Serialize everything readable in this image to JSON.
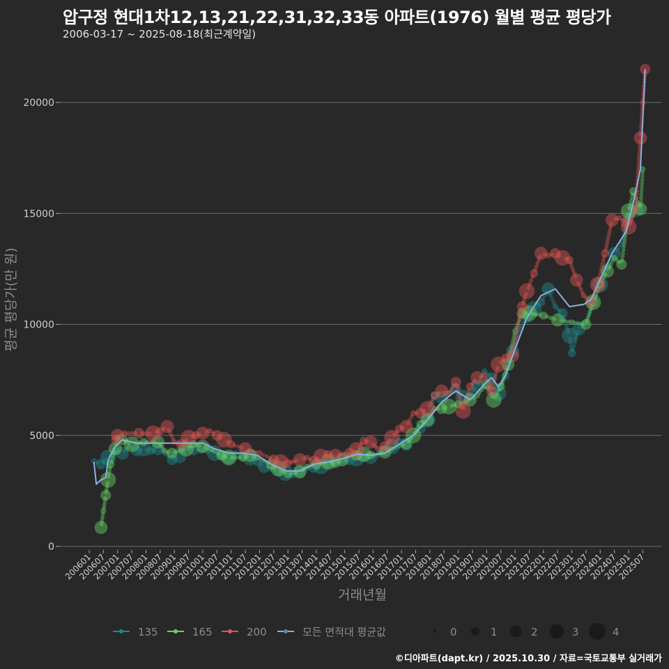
{
  "header": {
    "title": "압구정 현대1차12,13,21,22,31,32,33동 아파트(1976) 월별 평균 평당가",
    "subtitle": "2006-03-17 ~ 2025-08-18(최근계약일)"
  },
  "footer": {
    "credit": "©디아파트(dapt.kr) / 2025.10.30 / 자료=국토교통부 실거래가"
  },
  "colors": {
    "background": "#282828",
    "grid": "#6e6e6e",
    "s135": "#1f8a8a",
    "s165": "#66d466",
    "s200": "#e05555",
    "avg": "#8fb0e0"
  },
  "chart_data": {
    "type": "scatter",
    "title": "압구정 현대1차12,13,21,22,31,32,33동 아파트(1976) 월별 평균 평당가",
    "subtitle": "2006-03-17 ~ 2025-08-18(최근계약일)",
    "xlabel": "거래년월",
    "ylabel": "평균 평당가(만 원)",
    "ylim": [
      0,
      21800
    ],
    "yticks": [
      0,
      5000,
      10000,
      15000,
      20000
    ],
    "xticks": [
      "200601",
      "200607",
      "200701",
      "200707",
      "200801",
      "200807",
      "200901",
      "200907",
      "201001",
      "201007",
      "201101",
      "201107",
      "201201",
      "201207",
      "201301",
      "201307",
      "201401",
      "201407",
      "201501",
      "201507",
      "201601",
      "201607",
      "201701",
      "201707",
      "201801",
      "201807",
      "201901",
      "201907",
      "202001",
      "202007",
      "202101",
      "202107",
      "202201",
      "202207",
      "202301",
      "202307",
      "202401",
      "202407",
      "202501",
      "202507"
    ],
    "grid": true,
    "legend": {
      "position": "bottom",
      "series_title": "",
      "items": [
        "135",
        "165",
        "200",
        "모든 면적대 평균값"
      ],
      "size_items": [
        "0",
        "1",
        "2",
        "3",
        "4"
      ]
    },
    "series": [
      {
        "name": "135",
        "points": [
          [
            "200603",
            3850
          ],
          [
            "200606",
            3700
          ],
          [
            "200609",
            4000
          ],
          [
            "200612",
            4300
          ],
          [
            "200703",
            4200
          ],
          [
            "200706",
            4500
          ],
          [
            "200709",
            4300
          ],
          [
            "200712",
            4400
          ],
          [
            "200803",
            4300
          ],
          [
            "200806",
            4400
          ],
          [
            "200809",
            4200
          ],
          [
            "200812",
            3900
          ],
          [
            "200903",
            4100
          ],
          [
            "200906",
            4500
          ],
          [
            "200909",
            4400
          ],
          [
            "200912",
            4300
          ],
          [
            "201003",
            4400
          ],
          [
            "201006",
            4200
          ],
          [
            "201009",
            4100
          ],
          [
            "201012",
            4000
          ],
          [
            "201103",
            4200
          ],
          [
            "201106",
            4100
          ],
          [
            "201109",
            4000
          ],
          [
            "201112",
            3800
          ],
          [
            "201203",
            3600
          ],
          [
            "201206",
            3500
          ],
          [
            "201209",
            3400
          ],
          [
            "201212",
            3300
          ],
          [
            "201303",
            3250
          ],
          [
            "201306",
            3400
          ],
          [
            "201309",
            3500
          ],
          [
            "201312",
            3550
          ],
          [
            "201403",
            3600
          ],
          [
            "201406",
            3700
          ],
          [
            "201409",
            3800
          ],
          [
            "201412",
            3850
          ],
          [
            "201503",
            3900
          ],
          [
            "201506",
            3950
          ],
          [
            "201509",
            4000
          ],
          [
            "201512",
            4000
          ],
          [
            "201603",
            4100
          ],
          [
            "201606",
            4300
          ],
          [
            "201609",
            4500
          ],
          [
            "201612",
            4700
          ],
          [
            "201703",
            4600
          ],
          [
            "201706",
            5000
          ],
          [
            "201709",
            5300
          ],
          [
            "201712",
            5700
          ],
          [
            "201803",
            6800
          ],
          [
            "201806",
            6700
          ],
          [
            "201809",
            6900
          ],
          [
            "201812",
            7100
          ],
          [
            "201903",
            6700
          ],
          [
            "201906",
            6800
          ],
          [
            "201909",
            7200
          ],
          [
            "201912",
            7900
          ],
          [
            "202003",
            7600
          ],
          [
            "202006",
            6900
          ],
          [
            "202009",
            7700
          ],
          [
            "202012",
            8800
          ],
          [
            "202103",
            9800
          ],
          [
            "202106",
            10300
          ],
          [
            "202109",
            10700
          ],
          [
            "202112",
            11000
          ],
          [
            "202203",
            11600
          ],
          [
            "202206",
            10800
          ],
          [
            "202209",
            10500
          ],
          [
            "202212",
            9500
          ],
          [
            "202301",
            8700
          ],
          [
            "202304",
            9800
          ],
          [
            "202307",
            10100
          ],
          [
            "202310",
            11000
          ],
          [
            "202401",
            11800
          ],
          [
            "202404",
            12600
          ],
          [
            "202407",
            13200
          ],
          [
            "202410",
            13600
          ],
          [
            "202501",
            14800
          ],
          [
            "202504",
            15200
          ]
        ]
      },
      {
        "name": "165",
        "points": [
          [
            "200606",
            850
          ],
          [
            "200607",
            1600
          ],
          [
            "200608",
            2300
          ],
          [
            "200609",
            3000
          ],
          [
            "200610",
            3700
          ],
          [
            "200612",
            4400
          ],
          [
            "200701",
            4900
          ],
          [
            "200703",
            4800
          ],
          [
            "200707",
            4600
          ],
          [
            "200712",
            4700
          ],
          [
            "200806",
            4700
          ],
          [
            "200809",
            4300
          ],
          [
            "200812",
            4200
          ],
          [
            "200906",
            4400
          ],
          [
            "200909",
            4600
          ],
          [
            "201001",
            4500
          ],
          [
            "201006",
            4300
          ],
          [
            "201009",
            4100
          ],
          [
            "201012",
            4000
          ],
          [
            "201106",
            4000
          ],
          [
            "201109",
            4100
          ],
          [
            "201112",
            4000
          ],
          [
            "201206",
            3700
          ],
          [
            "201209",
            3500
          ],
          [
            "201301",
            3250
          ],
          [
            "201306",
            3350
          ],
          [
            "201309",
            3600
          ],
          [
            "201401",
            3700
          ],
          [
            "201406",
            3800
          ],
          [
            "201409",
            3750
          ],
          [
            "201412",
            3900
          ],
          [
            "201503",
            4100
          ],
          [
            "201506",
            4100
          ],
          [
            "201509",
            4150
          ],
          [
            "201512",
            4100
          ],
          [
            "201606",
            4250
          ],
          [
            "201609",
            4400
          ],
          [
            "201703",
            4600
          ],
          [
            "201706",
            5000
          ],
          [
            "201709",
            5500
          ],
          [
            "201712",
            5700
          ],
          [
            "201803",
            6200
          ],
          [
            "201806",
            6200
          ],
          [
            "201809",
            6300
          ],
          [
            "201901",
            6400
          ],
          [
            "201906",
            6600
          ],
          [
            "201909",
            6800
          ],
          [
            "202001",
            7300
          ],
          [
            "202004",
            6600
          ],
          [
            "202007",
            7200
          ],
          [
            "202010",
            8200
          ],
          [
            "202101",
            9700
          ],
          [
            "202104",
            10500
          ],
          [
            "202107",
            10500
          ],
          [
            "202201",
            10400
          ],
          [
            "202207",
            10200
          ],
          [
            "202301",
            10100
          ],
          [
            "202307",
            10000
          ],
          [
            "202310",
            11000
          ],
          [
            "202401",
            11800
          ],
          [
            "202404",
            12400
          ],
          [
            "202407",
            13000
          ],
          [
            "202410",
            12700
          ],
          [
            "202501",
            15100
          ],
          [
            "202503",
            16000
          ],
          [
            "202506",
            15200
          ],
          [
            "202507",
            17000
          ]
        ]
      },
      {
        "name": "200",
        "points": [
          [
            "200612",
            4800
          ],
          [
            "200701",
            5000
          ],
          [
            "200704",
            5100
          ],
          [
            "200710",
            5100
          ],
          [
            "200804",
            5100
          ],
          [
            "200807",
            5200
          ],
          [
            "200810",
            5400
          ],
          [
            "200901",
            4700
          ],
          [
            "200904",
            4600
          ],
          [
            "200907",
            4900
          ],
          [
            "200910",
            5000
          ],
          [
            "201001",
            5100
          ],
          [
            "201004",
            5200
          ],
          [
            "201007",
            5000
          ],
          [
            "201010",
            4800
          ],
          [
            "201101",
            4600
          ],
          [
            "201107",
            4400
          ],
          [
            "201201",
            4200
          ],
          [
            "201207",
            3900
          ],
          [
            "201210",
            3800
          ],
          [
            "201301",
            3750
          ],
          [
            "201306",
            3900
          ],
          [
            "201309",
            4000
          ],
          [
            "201312",
            3850
          ],
          [
            "201403",
            4050
          ],
          [
            "201406",
            4150
          ],
          [
            "201409",
            4100
          ],
          [
            "201412",
            4150
          ],
          [
            "201503",
            4200
          ],
          [
            "201506",
            4350
          ],
          [
            "201509",
            4750
          ],
          [
            "201512",
            4700
          ],
          [
            "201603",
            4400
          ],
          [
            "201606",
            4500
          ],
          [
            "201609",
            4900
          ],
          [
            "201612",
            5300
          ],
          [
            "201703",
            5400
          ],
          [
            "201706",
            6000
          ],
          [
            "201709",
            6000
          ],
          [
            "201712",
            6200
          ],
          [
            "201803",
            6800
          ],
          [
            "201806",
            7000
          ],
          [
            "201809",
            6900
          ],
          [
            "201812",
            7400
          ],
          [
            "201903",
            6100
          ],
          [
            "201906",
            7200
          ],
          [
            "201909",
            7600
          ],
          [
            "201912",
            7700
          ],
          [
            "202003",
            7000
          ],
          [
            "202006",
            8200
          ],
          [
            "202009",
            8500
          ],
          [
            "202012",
            8600
          ],
          [
            "202103",
            10400
          ],
          [
            "202104",
            10800
          ],
          [
            "202106",
            11500
          ],
          [
            "202109",
            12300
          ],
          [
            "202112",
            13200
          ],
          [
            "202203",
            13100
          ],
          [
            "202206",
            13200
          ],
          [
            "202209",
            13000
          ],
          [
            "202212",
            12900
          ],
          [
            "202303",
            12000
          ],
          [
            "202306",
            11300
          ],
          [
            "202309",
            11000
          ],
          [
            "202312",
            11800
          ],
          [
            "202403",
            13200
          ],
          [
            "202406",
            14700
          ],
          [
            "202409",
            14800
          ],
          [
            "202412",
            14600
          ],
          [
            "202501",
            14400
          ],
          [
            "202504",
            15200
          ],
          [
            "202506",
            18400
          ],
          [
            "202507",
            20000
          ],
          [
            "202508",
            21500
          ]
        ]
      },
      {
        "name": "모든 면적대 평균값",
        "points": [
          [
            "200603",
            3800
          ],
          [
            "200604",
            2800
          ],
          [
            "200606",
            3000
          ],
          [
            "200608",
            3100
          ],
          [
            "200609",
            3900
          ],
          [
            "200612",
            4500
          ],
          [
            "200703",
            4800
          ],
          [
            "200709",
            4650
          ],
          [
            "201001",
            4650
          ],
          [
            "201006",
            4400
          ],
          [
            "201012",
            4200
          ],
          [
            "201106",
            4200
          ],
          [
            "201112",
            4100
          ],
          [
            "201206",
            3700
          ],
          [
            "201212",
            3400
          ],
          [
            "201306",
            3400
          ],
          [
            "201312",
            3700
          ],
          [
            "201406",
            3800
          ],
          [
            "201412",
            3950
          ],
          [
            "201506",
            4150
          ],
          [
            "201512",
            4100
          ],
          [
            "201606",
            4200
          ],
          [
            "201612",
            4600
          ],
          [
            "201706",
            5000
          ],
          [
            "201712",
            5700
          ],
          [
            "201806",
            6500
          ],
          [
            "201812",
            7000
          ],
          [
            "201903",
            6800
          ],
          [
            "201906",
            6600
          ],
          [
            "201912",
            7300
          ],
          [
            "202003",
            7600
          ],
          [
            "202006",
            7200
          ],
          [
            "202009",
            7700
          ],
          [
            "202012",
            8600
          ],
          [
            "202106",
            10300
          ],
          [
            "202112",
            11300
          ],
          [
            "202206",
            11600
          ],
          [
            "202209",
            11200
          ],
          [
            "202212",
            10800
          ],
          [
            "202303",
            10850
          ],
          [
            "202306",
            10900
          ],
          [
            "202309",
            11100
          ],
          [
            "202312",
            11800
          ],
          [
            "202406",
            13200
          ],
          [
            "202412",
            14200
          ],
          [
            "202503",
            15500
          ],
          [
            "202506",
            17000
          ],
          [
            "202508",
            21500
          ]
        ]
      }
    ]
  },
  "legend_labels": {
    "s135": "135",
    "s165": "165",
    "s200": "200",
    "avg": "모든 면적대 평균값",
    "size0": "0",
    "size1": "1",
    "size2": "2",
    "size3": "3",
    "size4": "4"
  },
  "axis": {
    "xlabel": "거래년월",
    "ylabel": "평균 평당가(만 원)",
    "yticks": [
      "0",
      "5000",
      "10000",
      "15000",
      "20000"
    ]
  }
}
